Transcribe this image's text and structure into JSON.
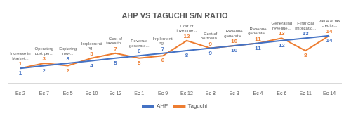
{
  "chart_data": {
    "type": "line",
    "title": "AHP VS TAGUCHI S/N RATIO",
    "categories": [
      "Ec 2",
      "Ec 7",
      "Ec 5",
      "Ec 10",
      "Ec 13",
      "Ec 1",
      "Ec 9",
      "Ec 12",
      "Ec 8",
      "Ec 3",
      "Ec 4",
      "Ec 6",
      "Ec 11",
      "Ec 14"
    ],
    "series": [
      {
        "name": "AHP",
        "color": "#4472c4",
        "values": [
          1,
          2,
          3,
          4,
          5,
          6,
          7,
          8,
          9,
          10,
          11,
          12,
          13,
          14
        ]
      },
      {
        "name": "Taguchi",
        "color": "#ed7d31",
        "values": [
          1,
          3,
          2,
          5,
          7,
          5,
          6,
          12,
          9,
          10,
          11,
          13,
          8,
          14
        ]
      }
    ],
    "annotations": [
      [
        "Increase in",
        "Market..."
      ],
      [
        "Operating",
        "cost per..."
      ],
      [
        "Exploring",
        "new..."
      ],
      [
        "Implementi",
        "ng..."
      ],
      [
        "Cost of",
        "taxes to..."
      ],
      [
        "Revenue",
        "generate..."
      ],
      [
        "Implementi",
        "ng..."
      ],
      [
        "Cost of",
        "investme..."
      ],
      [
        "Cost of",
        "borrowin..."
      ],
      [
        "Revenue",
        "generate..."
      ],
      [
        "Revenue",
        "generate..."
      ],
      [
        "Generating",
        "revenue..."
      ],
      [
        "Financial",
        "implicatio..."
      ],
      [
        "Value of tax",
        "credits..."
      ]
    ],
    "legend": "bottom",
    "data_labels": true,
    "tick_labels": "x",
    "marker": "none"
  }
}
